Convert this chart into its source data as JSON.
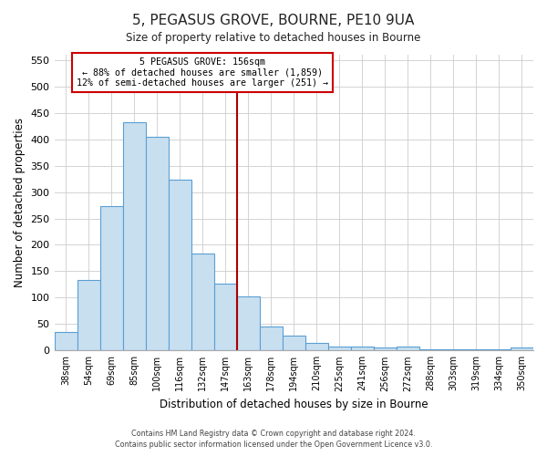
{
  "title": "5, PEGASUS GROVE, BOURNE, PE10 9UA",
  "subtitle": "Size of property relative to detached houses in Bourne",
  "xlabel": "Distribution of detached houses by size in Bourne",
  "ylabel": "Number of detached properties",
  "bar_labels": [
    "38sqm",
    "54sqm",
    "69sqm",
    "85sqm",
    "100sqm",
    "116sqm",
    "132sqm",
    "147sqm",
    "163sqm",
    "178sqm",
    "194sqm",
    "210sqm",
    "225sqm",
    "241sqm",
    "256sqm",
    "272sqm",
    "288sqm",
    "303sqm",
    "319sqm",
    "334sqm",
    "350sqm"
  ],
  "bar_values": [
    35,
    133,
    273,
    432,
    405,
    323,
    184,
    127,
    102,
    45,
    29,
    15,
    7,
    8,
    5,
    8,
    3,
    2,
    2,
    2,
    5
  ],
  "bar_color": "#c8dff0",
  "bar_edge_color": "#5a9fd4",
  "vline_index": 8,
  "vline_color": "#aa0000",
  "annotation_title": "5 PEGASUS GROVE: 156sqm",
  "annotation_line1": "← 88% of detached houses are smaller (1,859)",
  "annotation_line2": "12% of semi-detached houses are larger (251) →",
  "annotation_box_color": "#ffffff",
  "annotation_box_edge": "#cc0000",
  "ylim": [
    0,
    560
  ],
  "yticks": [
    0,
    50,
    100,
    150,
    200,
    250,
    300,
    350,
    400,
    450,
    500,
    550
  ],
  "footer_line1": "Contains HM Land Registry data © Crown copyright and database right 2024.",
  "footer_line2": "Contains public sector information licensed under the Open Government Licence v3.0.",
  "bg_color": "#ffffff",
  "grid_color": "#cccccc"
}
